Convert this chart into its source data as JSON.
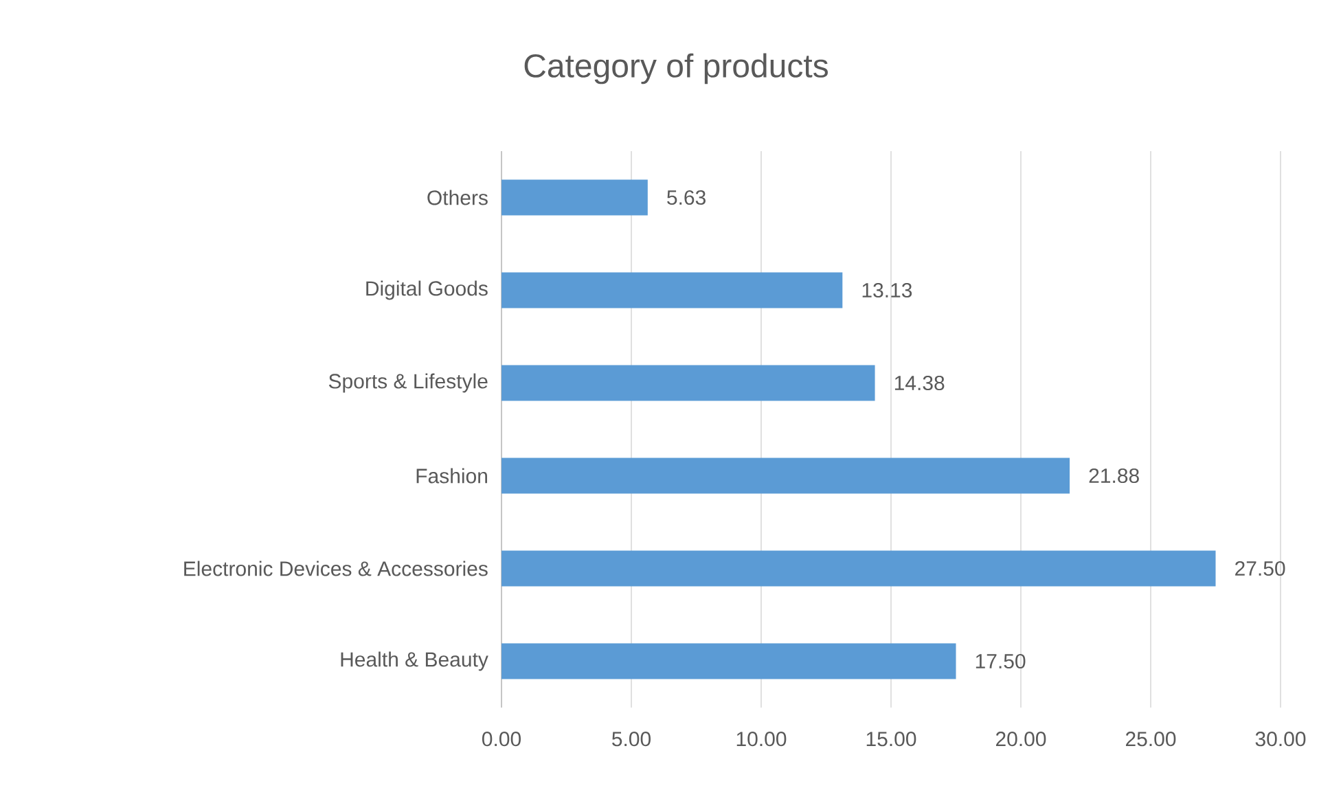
{
  "chart_data": {
    "type": "bar",
    "orientation": "horizontal",
    "title": "Category of products",
    "categories": [
      "Others",
      "Digital Goods",
      "Sports & Lifestyle",
      "Fashion",
      "Electronic Devices & Accessories",
      "Health & Beauty"
    ],
    "values": [
      5.63,
      13.13,
      14.38,
      21.88,
      27.5,
      17.5
    ],
    "value_labels": [
      "5.63",
      "13.13",
      "14.38",
      "21.88",
      "27.50",
      "17.50"
    ],
    "color": "#5b9bd5",
    "xlim": [
      0,
      30
    ],
    "xticks": [
      {
        "value": 0,
        "label": "0.00"
      },
      {
        "value": 5,
        "label": "5.00"
      },
      {
        "value": 10,
        "label": "10.00"
      },
      {
        "value": 15,
        "label": "15.00"
      },
      {
        "value": 20,
        "label": "20.00"
      },
      {
        "value": 25,
        "label": "25.00"
      },
      {
        "value": 30,
        "label": "30.00"
      }
    ],
    "grid": "x"
  }
}
